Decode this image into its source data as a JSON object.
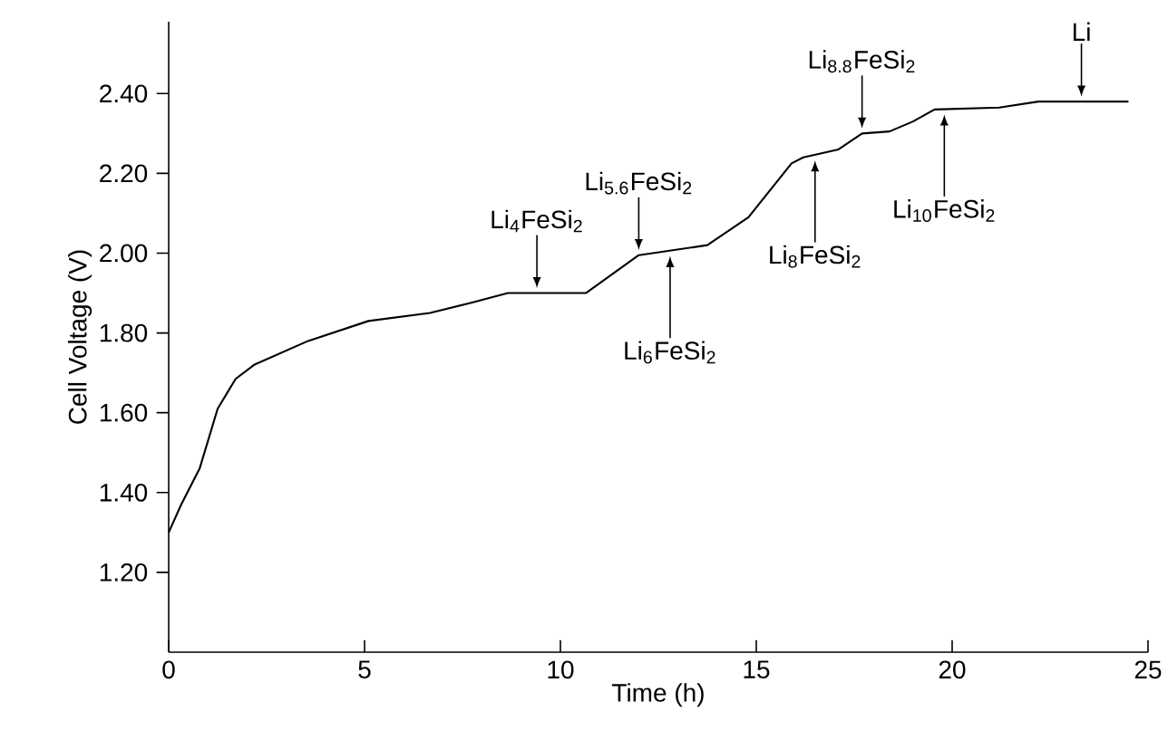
{
  "chart_data": {
    "type": "line",
    "xlabel": "Time (h)",
    "ylabel": "Cell Voltage (V)",
    "x": [
      0,
      0.32,
      0.79,
      1.25,
      1.71,
      2.18,
      3.56,
      5.1,
      6.67,
      7.7,
      8.66,
      10.65,
      12.0,
      13.75,
      14.8,
      15.9,
      16.2,
      17.1,
      17.7,
      18.4,
      19.0,
      19.55,
      21.2,
      22.2,
      24.5
    ],
    "series": [
      {
        "color": "#000000",
        "values": [
          1.3,
          1.37,
          1.46,
          1.61,
          1.685,
          1.72,
          1.78,
          1.83,
          1.85,
          1.875,
          1.9,
          1.9,
          1.995,
          2.02,
          2.09,
          2.225,
          2.24,
          2.26,
          2.3,
          2.305,
          2.33,
          2.36,
          2.365,
          2.38,
          2.38
        ]
      }
    ],
    "xlim": [
      0,
      25
    ],
    "ylim": [
      1.0,
      2.58
    ],
    "xticks": [
      0,
      5,
      10,
      15,
      20,
      25
    ],
    "yticks": [
      {
        "value": 1.2,
        "label": "1.20"
      },
      {
        "value": 1.4,
        "label": "1.40"
      },
      {
        "value": 1.6,
        "label": "1.60"
      },
      {
        "value": 1.8,
        "label": "1.80"
      },
      {
        "value": 2.0,
        "label": "2.00"
      },
      {
        "value": 2.2,
        "label": "2.20"
      },
      {
        "value": 2.4,
        "label": "2.40"
      }
    ],
    "marker": "none",
    "line_style": "solid",
    "annotations": [
      {
        "text": "Li$_{4}$FeSi$_{2}$",
        "x": 9.4,
        "y": 1.9
      },
      {
        "text": "Li$_{5.6}$FeSi$_{2}$",
        "x": 12.0,
        "y": 1.995
      },
      {
        "text": "Li$_{6}$FeSi$_{2}$",
        "x": 12.8,
        "y": 2.005
      },
      {
        "text": "Li$_{8}$FeSi$_{2}$",
        "x": 16.5,
        "y": 2.245
      },
      {
        "text": "Li$_{8.8}$FeSi$_{2}$",
        "x": 17.7,
        "y": 2.3
      },
      {
        "text": "Li$_{10}$FeSi$_{2}$",
        "x": 19.8,
        "y": 2.36
      },
      {
        "text": "Li",
        "x": 23.3,
        "y": 2.38
      }
    ]
  }
}
